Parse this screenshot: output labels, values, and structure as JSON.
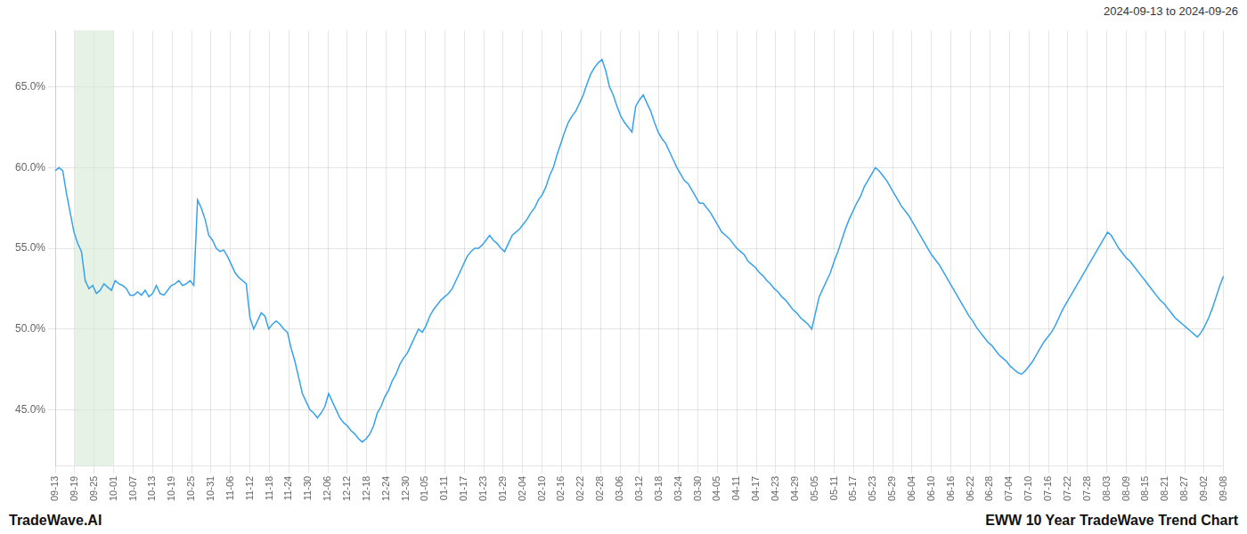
{
  "chart_data": {
    "type": "line",
    "title": "EWW 10 Year TradeWave Trend Chart",
    "subtitle": "2024-09-13 to 2024-09-26",
    "annotations": [
      "TradeWave.AI"
    ],
    "xlim": [
      0,
      60
    ],
    "xticks": [
      {
        "value": 0,
        "label": "09-13"
      },
      {
        "value": 1,
        "label": "09-19"
      },
      {
        "value": 2,
        "label": "09-25"
      },
      {
        "value": 3,
        "label": "10-01"
      },
      {
        "value": 4,
        "label": "10-07"
      },
      {
        "value": 5,
        "label": "10-13"
      },
      {
        "value": 6,
        "label": "10-19"
      },
      {
        "value": 7,
        "label": "10-25"
      },
      {
        "value": 8,
        "label": "10-31"
      },
      {
        "value": 9,
        "label": "11-06"
      },
      {
        "value": 10,
        "label": "11-12"
      },
      {
        "value": 11,
        "label": "11-18"
      },
      {
        "value": 12,
        "label": "11-24"
      },
      {
        "value": 13,
        "label": "11-30"
      },
      {
        "value": 14,
        "label": "12-06"
      },
      {
        "value": 15,
        "label": "12-12"
      },
      {
        "value": 16,
        "label": "12-18"
      },
      {
        "value": 17,
        "label": "12-24"
      },
      {
        "value": 18,
        "label": "12-30"
      },
      {
        "value": 19,
        "label": "01-05"
      },
      {
        "value": 20,
        "label": "01-11"
      },
      {
        "value": 21,
        "label": "01-17"
      },
      {
        "value": 22,
        "label": "01-23"
      },
      {
        "value": 23,
        "label": "01-29"
      },
      {
        "value": 24,
        "label": "02-04"
      },
      {
        "value": 25,
        "label": "02-10"
      },
      {
        "value": 26,
        "label": "02-16"
      },
      {
        "value": 27,
        "label": "02-22"
      },
      {
        "value": 28,
        "label": "02-28"
      },
      {
        "value": 29,
        "label": "03-06"
      },
      {
        "value": 30,
        "label": "03-12"
      },
      {
        "value": 31,
        "label": "03-18"
      },
      {
        "value": 32,
        "label": "03-24"
      },
      {
        "value": 33,
        "label": "03-30"
      },
      {
        "value": 34,
        "label": "04-05"
      },
      {
        "value": 35,
        "label": "04-11"
      },
      {
        "value": 36,
        "label": "04-17"
      },
      {
        "value": 37,
        "label": "04-23"
      },
      {
        "value": 38,
        "label": "04-29"
      },
      {
        "value": 39,
        "label": "05-05"
      },
      {
        "value": 40,
        "label": "05-11"
      },
      {
        "value": 41,
        "label": "05-17"
      },
      {
        "value": 42,
        "label": "05-23"
      },
      {
        "value": 43,
        "label": "05-29"
      },
      {
        "value": 44,
        "label": "06-04"
      },
      {
        "value": 45,
        "label": "06-10"
      },
      {
        "value": 46,
        "label": "06-16"
      },
      {
        "value": 47,
        "label": "06-22"
      },
      {
        "value": 48,
        "label": "06-28"
      },
      {
        "value": 49,
        "label": "07-04"
      },
      {
        "value": 50,
        "label": "07-10"
      },
      {
        "value": 51,
        "label": "07-16"
      },
      {
        "value": 52,
        "label": "07-22"
      },
      {
        "value": 53,
        "label": "07-28"
      },
      {
        "value": 54,
        "label": "08-03"
      },
      {
        "value": 55,
        "label": "08-09"
      },
      {
        "value": 56,
        "label": "08-15"
      },
      {
        "value": 57,
        "label": "08-21"
      },
      {
        "value": 58,
        "label": "08-27"
      },
      {
        "value": 59,
        "label": "09-02"
      },
      {
        "value": 60,
        "label": "09-08"
      }
    ],
    "ylim": [
      0.415,
      0.685
    ],
    "yticks": [
      {
        "value": 0.45,
        "label": "45.0%"
      },
      {
        "value": 0.5,
        "label": "50.0%"
      },
      {
        "value": 0.55,
        "label": "55.0%"
      },
      {
        "value": 0.6,
        "label": "60.0%"
      },
      {
        "value": 0.65,
        "label": "65.0%"
      }
    ],
    "grid": true,
    "highlight": {
      "xlim": [
        1,
        3
      ],
      "color": "#d6ead6"
    },
    "values": [
      0.598,
      0.6,
      0.598,
      0.584,
      0.572,
      0.56,
      0.553,
      0.548,
      0.53,
      0.525,
      0.527,
      0.522,
      0.524,
      0.528,
      0.526,
      0.524,
      0.53,
      0.528,
      0.527,
      0.525,
      0.521,
      0.521,
      0.523,
      0.521,
      0.524,
      0.52,
      0.522,
      0.527,
      0.522,
      0.521,
      0.524,
      0.527,
      0.528,
      0.53,
      0.527,
      0.528,
      0.53,
      0.527,
      0.58,
      0.575,
      0.568,
      0.558,
      0.555,
      0.55,
      0.548,
      0.549,
      0.545,
      0.54,
      0.535,
      0.532,
      0.53,
      0.528,
      0.507,
      0.5,
      0.505,
      0.51,
      0.508,
      0.5,
      0.503,
      0.505,
      0.503,
      0.5,
      0.498,
      0.488,
      0.48,
      0.47,
      0.46,
      0.455,
      0.45,
      0.448,
      0.445,
      0.448,
      0.452,
      0.46,
      0.455,
      0.45,
      0.445,
      0.442,
      0.44,
      0.437,
      0.435,
      0.432,
      0.43,
      0.432,
      0.435,
      0.44,
      0.448,
      0.452,
      0.458,
      0.462,
      0.468,
      0.472,
      0.478,
      0.482,
      0.485,
      0.49,
      0.495,
      0.5,
      0.498,
      0.502,
      0.508,
      0.512,
      0.515,
      0.518,
      0.52,
      0.522,
      0.525,
      0.53,
      0.535,
      0.54,
      0.545,
      0.548,
      0.55,
      0.55,
      0.552,
      0.555,
      0.558,
      0.555,
      0.553,
      0.55,
      0.548,
      0.553,
      0.558,
      0.56,
      0.562,
      0.565,
      0.568,
      0.572,
      0.575,
      0.58,
      0.583,
      0.588,
      0.595,
      0.6,
      0.608,
      0.615,
      0.622,
      0.628,
      0.632,
      0.635,
      0.64,
      0.645,
      0.652,
      0.658,
      0.662,
      0.665,
      0.667,
      0.66,
      0.65,
      0.645,
      0.638,
      0.632,
      0.628,
      0.625,
      0.622,
      0.638,
      0.642,
      0.645,
      0.64,
      0.635,
      0.628,
      0.622,
      0.618,
      0.615,
      0.61,
      0.605,
      0.6,
      0.596,
      0.592,
      0.59,
      0.586,
      0.582,
      0.578,
      0.578,
      0.575,
      0.572,
      0.568,
      0.564,
      0.56,
      0.558,
      0.556,
      0.553,
      0.55,
      0.548,
      0.546,
      0.542,
      0.54,
      0.538,
      0.535,
      0.533,
      0.53,
      0.528,
      0.525,
      0.523,
      0.52,
      0.518,
      0.515,
      0.512,
      0.51,
      0.507,
      0.505,
      0.503,
      0.5,
      0.51,
      0.52,
      0.525,
      0.53,
      0.535,
      0.542,
      0.548,
      0.555,
      0.562,
      0.568,
      0.573,
      0.578,
      0.582,
      0.588,
      0.592,
      0.596,
      0.6,
      0.598,
      0.595,
      0.592,
      0.588,
      0.584,
      0.58,
      0.576,
      0.573,
      0.57,
      0.566,
      0.562,
      0.558,
      0.554,
      0.55,
      0.546,
      0.543,
      0.54,
      0.536,
      0.532,
      0.528,
      0.524,
      0.52,
      0.516,
      0.512,
      0.508,
      0.505,
      0.501,
      0.498,
      0.495,
      0.492,
      0.49,
      0.487,
      0.484,
      0.482,
      0.48,
      0.477,
      0.475,
      0.473,
      0.472,
      0.474,
      0.477,
      0.48,
      0.484,
      0.488,
      0.492,
      0.495,
      0.498,
      0.502,
      0.507,
      0.512,
      0.516,
      0.52,
      0.524,
      0.528,
      0.532,
      0.536,
      0.54,
      0.544,
      0.548,
      0.552,
      0.556,
      0.56,
      0.558,
      0.554,
      0.55,
      0.547,
      0.544,
      0.542,
      0.539,
      0.536,
      0.533,
      0.53,
      0.527,
      0.524,
      0.521,
      0.518,
      0.516,
      0.513,
      0.51,
      0.507,
      0.505,
      0.503,
      0.501,
      0.499,
      0.497,
      0.495,
      0.498,
      0.502,
      0.507,
      0.513,
      0.52,
      0.527,
      0.533
    ]
  }
}
